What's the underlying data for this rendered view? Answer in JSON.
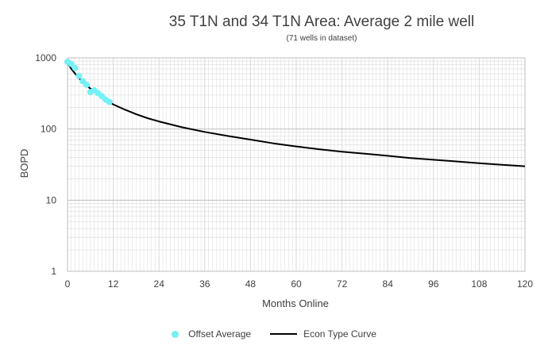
{
  "chart_data": {
    "type": "line",
    "title": "35 T1N and 34 T1N Area:  Average 2 mile well",
    "subtitle": "(71 wells in dataset)",
    "xlabel": "Months Online",
    "ylabel": "BOPD",
    "xlim": [
      0,
      120
    ],
    "ylim": [
      1,
      1000
    ],
    "yscale": "log",
    "xticks": [
      0,
      12,
      24,
      36,
      48,
      60,
      72,
      84,
      96,
      108,
      120
    ],
    "yticks": [
      1,
      10,
      100,
      1000
    ],
    "legend_position": "bottom",
    "colors": {
      "offset": "#75f0f5",
      "curve": "#000000",
      "grid": "#d9d9d9"
    },
    "series": [
      {
        "name": "Offset Average",
        "kind": "scatter",
        "x": [
          0,
          1,
          2,
          3,
          4,
          5,
          6,
          7,
          8,
          9,
          10,
          11
        ],
        "y": [
          880,
          820,
          720,
          560,
          470,
          420,
          330,
          350,
          320,
          290,
          260,
          240
        ]
      },
      {
        "name": "Econ Type Curve",
        "kind": "line",
        "x": [
          0,
          1,
          2,
          3,
          4,
          5,
          6,
          8,
          10,
          12,
          15,
          18,
          21,
          24,
          30,
          36,
          42,
          48,
          54,
          60,
          66,
          72,
          78,
          84,
          90,
          96,
          102,
          108,
          114,
          120
        ],
        "y": [
          850,
          700,
          600,
          520,
          460,
          410,
          370,
          310,
          260,
          222,
          188,
          162,
          142,
          128,
          106,
          91,
          80,
          71,
          63,
          57,
          52,
          48,
          45,
          42,
          39,
          37,
          35,
          33,
          31.5,
          30
        ]
      }
    ]
  }
}
